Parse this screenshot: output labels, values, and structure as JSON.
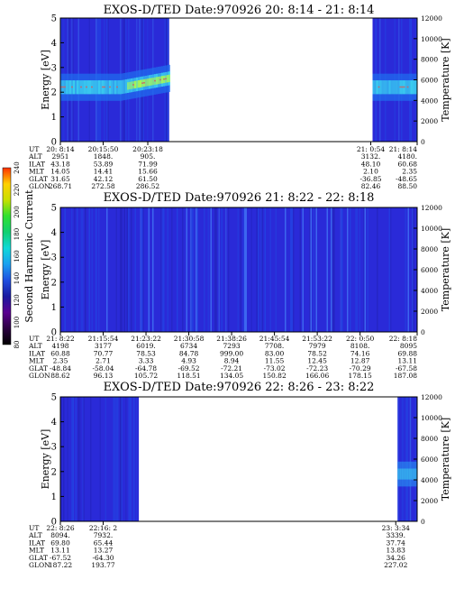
{
  "colors": {
    "background": "#2a2ad8",
    "band_cyan": "#3fe0f0",
    "band_green": "#b8ff40",
    "trace_red": "#d06060"
  },
  "colorbar": {
    "label": "Second Harmonic Current",
    "ticks": [
      "80",
      "100",
      "120",
      "140",
      "160",
      "180",
      "200",
      "220",
      "240"
    ],
    "stops": [
      "#000000",
      "#2a0040",
      "#5a0090",
      "#1a1aa0",
      "#1f4fe0",
      "#1aa0f0",
      "#10d8d8",
      "#10d070",
      "#30e030",
      "#c8e000",
      "#ffd000",
      "#ff3000"
    ]
  },
  "chart_data": [
    {
      "type": "heatmap",
      "title": "EXOS-D/TED   Date:970926  20: 8:14 - 21: 8:14",
      "ylabel": "Energy [eV]",
      "ylabel_right": "Temperature [K]",
      "ylim": [
        0,
        5
      ],
      "yticks": [
        "0",
        "1",
        "2",
        "3",
        "4",
        "5"
      ],
      "ylim_right": [
        0,
        12000
      ],
      "yticks_right": [
        "0",
        "2000",
        "4000",
        "6000",
        "8000",
        "10000",
        "12000"
      ],
      "data_segments": [
        [
          0.0,
          0.305
        ],
        [
          0.875,
          1.0
        ]
      ],
      "band": {
        "center_eV": 2.2,
        "peak_eV": 2.6
      },
      "ephemeris": {
        "labels": [
          "UT",
          "ALT",
          "ILAT",
          "MLT",
          "GLAT",
          "GLON"
        ],
        "columns": [
          {
            "pos": 0.0,
            "values": [
              "20: 8:14",
              "2951",
              "43.18",
              "14.05",
              "31.65",
              "268.71"
            ]
          },
          {
            "pos": 0.12,
            "values": [
              "20:15:50",
              "1848.",
              "53.89",
              "14.41",
              "42.12",
              "272.58"
            ]
          },
          {
            "pos": 0.245,
            "values": [
              "20:23:18",
              "905.",
              "71.99",
              "15.66",
              "61.50",
              "286.52"
            ]
          },
          {
            "pos": 0.87,
            "values": [
              "21: 0:54",
              "3132.",
              "48.10",
              "2.10",
              "-36.85",
              "82.46"
            ]
          },
          {
            "pos": 1.0,
            "values": [
              "21: 8:14",
              "4180.",
              "60.68",
              "2.35",
              "-48.65",
              "88.50"
            ]
          }
        ]
      }
    },
    {
      "type": "heatmap",
      "title": "EXOS-D/TED   Date:970926  21: 8:22 - 22: 8:18",
      "ylabel": "Energy [eV]",
      "ylabel_right": "Temperature [K]",
      "ylim": [
        0,
        5
      ],
      "yticks": [
        "0",
        "1",
        "2",
        "3",
        "4",
        "5"
      ],
      "ylim_right": [
        0,
        12000
      ],
      "yticks_right": [
        "0",
        "2000",
        "4000",
        "6000",
        "8000",
        "10000",
        "12000"
      ],
      "data_segments": [
        [
          0.0,
          1.0
        ]
      ],
      "ephemeris": {
        "labels": [
          "UT",
          "ALT",
          "ILAT",
          "MLT",
          "GLAT",
          "GLON"
        ],
        "columns": [
          {
            "pos": 0.0,
            "values": [
              "21: 8:22",
              "4198",
              "60.88",
              "2.35",
              "-48.84",
              "88.62"
            ]
          },
          {
            "pos": 0.12,
            "values": [
              "21:15:54",
              "3177",
              "70.77",
              "2.71",
              "-58.04",
              "96.13"
            ]
          },
          {
            "pos": 0.24,
            "values": [
              "21:23:22",
              "6019.",
              "78.53",
              "3.33",
              "-64.78",
              "105.72"
            ]
          },
          {
            "pos": 0.36,
            "values": [
              "21:30:58",
              "6734",
              "84.78",
              "4.93",
              "-69.52",
              "118.51"
            ]
          },
          {
            "pos": 0.48,
            "values": [
              "21:38:26",
              "7293",
              "999.00",
              "8.94",
              "-72.21",
              "134.05"
            ]
          },
          {
            "pos": 0.6,
            "values": [
              "21:45:54",
              "7708.",
              "83.00",
              "11.55",
              "-73.02",
              "150.82"
            ]
          },
          {
            "pos": 0.72,
            "values": [
              "21:53:22",
              "7979",
              "78.52",
              "12.45",
              "-72.23",
              "166.06"
            ]
          },
          {
            "pos": 0.84,
            "values": [
              "22: 0:50",
              "8108.",
              "74.16",
              "12.87",
              "-70.29",
              "178.15"
            ]
          },
          {
            "pos": 1.0,
            "values": [
              "22: 8:18",
              "8095",
              "69.88",
              "13.11",
              "-67.58",
              "187.08"
            ]
          }
        ]
      }
    },
    {
      "type": "heatmap",
      "title": "EXOS-D/TED   Date:970926  22: 8:26 - 23: 8:22",
      "ylabel": "Energy [eV]",
      "ylabel_right": "Temperature [K]",
      "ylim": [
        0,
        5
      ],
      "yticks": [
        "0",
        "1",
        "2",
        "3",
        "4",
        "5"
      ],
      "ylim_right": [
        0,
        12000
      ],
      "yticks_right": [
        "0",
        "2000",
        "4000",
        "6000",
        "8000",
        "10000",
        "12000"
      ],
      "data_segments": [
        [
          0.0,
          0.22
        ],
        [
          0.945,
          1.0
        ]
      ],
      "ephemeris": {
        "labels": [
          "UT",
          "ALT",
          "ILAT",
          "MLT",
          "GLAT",
          "GLON"
        ],
        "columns": [
          {
            "pos": 0.0,
            "values": [
              "22: 8:26",
              "8094.",
              "69.80",
              "13.11",
              "-67.52",
              "187.22"
            ]
          },
          {
            "pos": 0.12,
            "values": [
              "22:16: 2",
              "7932.",
              "65.44",
              "13.27",
              "-64.30",
              "193.77"
            ]
          },
          {
            "pos": 0.94,
            "values": [
              "23: 3:34",
              "3339.",
              "37.74",
              "13.83",
              "34.26",
              "227.02"
            ]
          }
        ]
      }
    }
  ]
}
